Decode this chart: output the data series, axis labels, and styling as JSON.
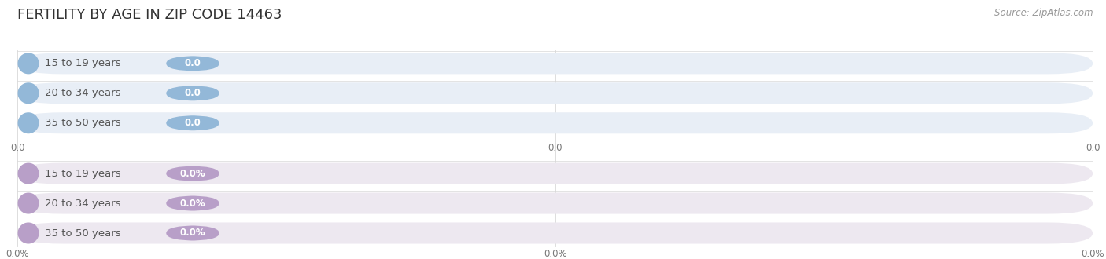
{
  "title": "FERTILITY BY AGE IN ZIP CODE 14463",
  "source": "Source: ZipAtlas.com",
  "top_bars": {
    "labels": [
      "15 to 19 years",
      "20 to 34 years",
      "35 to 50 years"
    ],
    "value_labels": [
      "0.0",
      "0.0",
      "0.0"
    ],
    "bar_bg_color": "#e8eef6",
    "circle_color": "#93b8d8",
    "label_color": "#555555",
    "value_bg_color": "#93b8d8",
    "value_text_color": "#ffffff",
    "axis_labels": [
      "0.0",
      "0.0",
      "0.0"
    ]
  },
  "bottom_bars": {
    "labels": [
      "15 to 19 years",
      "20 to 34 years",
      "35 to 50 years"
    ],
    "value_labels": [
      "0.0%",
      "0.0%",
      "0.0%"
    ],
    "bar_bg_color": "#ede8f0",
    "circle_color": "#b89fc8",
    "label_color": "#555555",
    "value_bg_color": "#b89fc8",
    "value_text_color": "#ffffff",
    "axis_labels": [
      "0.0%",
      "0.0%",
      "0.0%"
    ]
  },
  "bg_color": "#ffffff",
  "grid_color": "#d8d8d8",
  "title_fontsize": 13,
  "source_fontsize": 8.5,
  "label_fontsize": 9.5,
  "value_fontsize": 8.5,
  "axis_fontsize": 8.5
}
